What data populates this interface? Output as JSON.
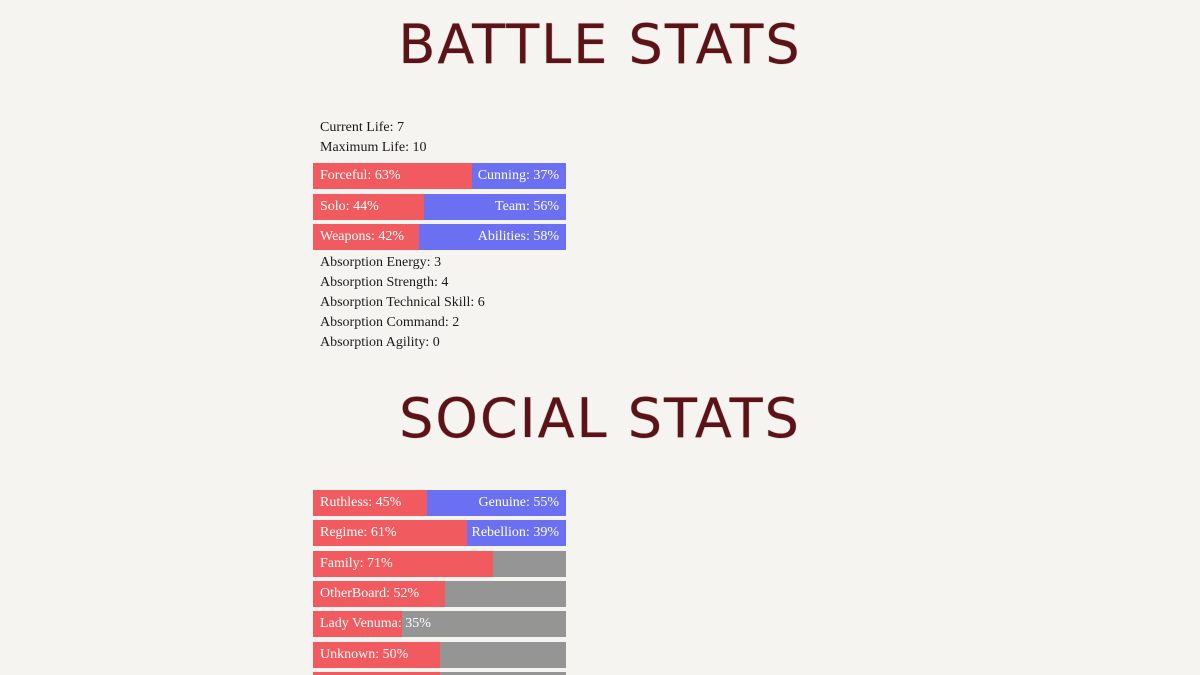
{
  "battle": {
    "title": "BATTLE STATS",
    "current_life": "Current Life: 7",
    "maximum_life": "Maximum Life: 10",
    "bars": [
      {
        "left_label": "Forceful: 63%",
        "right_label": "Cunning: 37%",
        "left_percent": 63
      },
      {
        "left_label": "Solo: 44%",
        "right_label": "Team: 56%",
        "left_percent": 44
      },
      {
        "left_label": "Weapons: 42%",
        "right_label": "Abilities: 58%",
        "left_percent": 42
      }
    ],
    "absorption": [
      "Absorption Energy: 3",
      "Absorption Strength: 4",
      "Absorption Technical Skill: 6",
      "Absorption Command: 2",
      "Absorption Agility: 0"
    ]
  },
  "social": {
    "title": "SOCIAL STATS",
    "dual_bars": [
      {
        "left_label": "Ruthless: 45%",
        "right_label": "Genuine: 55%",
        "left_percent": 45
      },
      {
        "left_label": "Regime: 61%",
        "right_label": "Rebellion: 39%",
        "left_percent": 61
      }
    ],
    "single_bars": [
      {
        "label": "Family: 71%",
        "percent": 71
      },
      {
        "label": "OtherBoard: 52%",
        "percent": 52
      },
      {
        "label": "Lady Venuma: 35%",
        "percent": 35
      },
      {
        "label": "Unknown: 50%",
        "percent": 50
      }
    ]
  },
  "colors": {
    "title": "#5b1318",
    "left_fill": "#f15a5e",
    "right_fill": "#6b6ff2",
    "empty_fill": "#959595",
    "background": "#f6f4f0"
  }
}
